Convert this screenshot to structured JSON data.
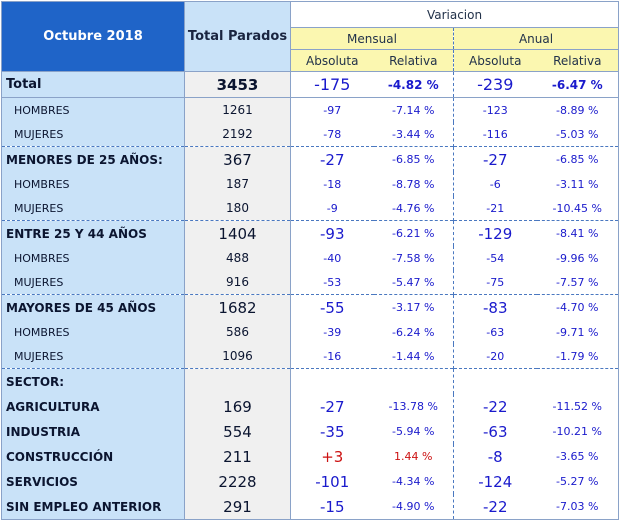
{
  "header": {
    "title": "Octubre 2018",
    "total_label": "Total Parados",
    "variacion": "Variacion",
    "mensual": "Mensual",
    "anual": "Anual",
    "absoluta": "Absoluta",
    "relativa": "Relativa"
  },
  "rows": [
    {
      "label": "Total",
      "type": "total",
      "total": "3453",
      "mabs": "-175",
      "mrel": "-4.82 %",
      "aabs": "-239",
      "arel": "-6.47 %"
    },
    {
      "label": "HOMBRES",
      "type": "sub",
      "total": "1261",
      "mabs": "-97",
      "mrel": "-7.14 %",
      "aabs": "-123",
      "arel": "-8.89 %"
    },
    {
      "label": "MUJERES",
      "type": "sub",
      "total": "2192",
      "mabs": "-78",
      "mrel": "-3.44 %",
      "aabs": "-116",
      "arel": "-5.03 %"
    },
    {
      "label": "MENORES DE 25 AÑOS:",
      "type": "main",
      "total": "367",
      "mabs": "-27",
      "mrel": "-6.85 %",
      "aabs": "-27",
      "arel": "-6.85 %"
    },
    {
      "label": "HOMBRES",
      "type": "sub",
      "total": "187",
      "mabs": "-18",
      "mrel": "-8.78 %",
      "aabs": "-6",
      "arel": "-3.11 %"
    },
    {
      "label": "MUJERES",
      "type": "sub",
      "total": "180",
      "mabs": "-9",
      "mrel": "-4.76 %",
      "aabs": "-21",
      "arel": "-10.45 %"
    },
    {
      "label": "ENTRE 25 Y 44 AÑOS",
      "type": "main",
      "total": "1404",
      "mabs": "-93",
      "mrel": "-6.21 %",
      "aabs": "-129",
      "arel": "-8.41 %"
    },
    {
      "label": "HOMBRES",
      "type": "sub",
      "total": "488",
      "mabs": "-40",
      "mrel": "-7.58 %",
      "aabs": "-54",
      "arel": "-9.96 %"
    },
    {
      "label": "MUJERES",
      "type": "sub",
      "total": "916",
      "mabs": "-53",
      "mrel": "-5.47 %",
      "aabs": "-75",
      "arel": "-7.57 %"
    },
    {
      "label": "MAYORES DE 45 AÑOS",
      "type": "main",
      "total": "1682",
      "mabs": "-55",
      "mrel": "-3.17 %",
      "aabs": "-83",
      "arel": "-4.70 %"
    },
    {
      "label": "HOMBRES",
      "type": "sub",
      "total": "586",
      "mabs": "-39",
      "mrel": "-6.24 %",
      "aabs": "-63",
      "arel": "-9.71 %"
    },
    {
      "label": "MUJERES",
      "type": "sub",
      "total": "1096",
      "mabs": "-16",
      "mrel": "-1.44 %",
      "aabs": "-20",
      "arel": "-1.79 %"
    },
    {
      "label": "SECTOR:",
      "type": "main",
      "total": "",
      "mabs": "",
      "mrel": "",
      "aabs": "",
      "arel": ""
    },
    {
      "label": "AGRICULTURA",
      "type": "sector",
      "total": "169",
      "mabs": "-27",
      "mrel": "-13.78 %",
      "aabs": "-22",
      "arel": "-11.52 %"
    },
    {
      "label": "INDUSTRIA",
      "type": "sector",
      "total": "554",
      "mabs": "-35",
      "mrel": "-5.94 %",
      "aabs": "-63",
      "arel": "-10.21 %"
    },
    {
      "label": "CONSTRUCCIÓN",
      "type": "sector",
      "total": "211",
      "mabs": "+3",
      "mrel": "1.44 %",
      "aabs": "-8",
      "arel": "-3.65 %",
      "positive_color": "#cc1111"
    },
    {
      "label": "SERVICIOS",
      "type": "sector",
      "total": "2228",
      "mabs": "-101",
      "mrel": "-4.34 %",
      "aabs": "-124",
      "arel": "-5.27 %"
    },
    {
      "label": "SIN EMPLEO ANTERIOR",
      "type": "sector",
      "total": "291",
      "mabs": "-15",
      "mrel": "-4.90 %",
      "aabs": "-22",
      "arel": "-7.03 %"
    }
  ],
  "colors": {
    "title_bg": "#1f64c8",
    "label_bg": "#c9e2f8",
    "subheader_bg": "#fbf7b0",
    "value_blue": "#1a1acc",
    "value_red": "#cc1111"
  }
}
